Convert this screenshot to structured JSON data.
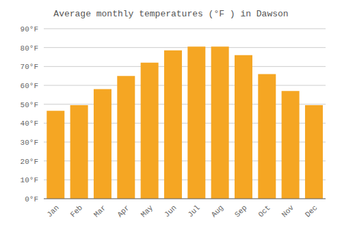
{
  "chart_data": {
    "type": "bar",
    "title": "Average monthly temperatures (°F ) in Dawson",
    "categories": [
      "Jan",
      "Feb",
      "Mar",
      "Apr",
      "May",
      "Jun",
      "Jul",
      "Aug",
      "Sep",
      "Oct",
      "Nov",
      "Dec"
    ],
    "values": [
      46.5,
      49.5,
      58,
      65,
      72,
      78.5,
      80.5,
      80.5,
      76,
      66,
      57,
      49.5
    ],
    "color": "#F5A623",
    "ylim": [
      0,
      90
    ],
    "yticks": [
      {
        "value": 0,
        "label": "0°F"
      },
      {
        "value": 10,
        "label": "10°F"
      },
      {
        "value": 20,
        "label": "20°F"
      },
      {
        "value": 30,
        "label": "30°F"
      },
      {
        "value": 40,
        "label": "40°F"
      },
      {
        "value": 50,
        "label": "50°F"
      },
      {
        "value": 60,
        "label": "60°F"
      },
      {
        "value": 70,
        "label": "70°F"
      },
      {
        "value": 80,
        "label": "80°F"
      },
      {
        "value": 90,
        "label": "90°F"
      }
    ],
    "grid": true
  }
}
